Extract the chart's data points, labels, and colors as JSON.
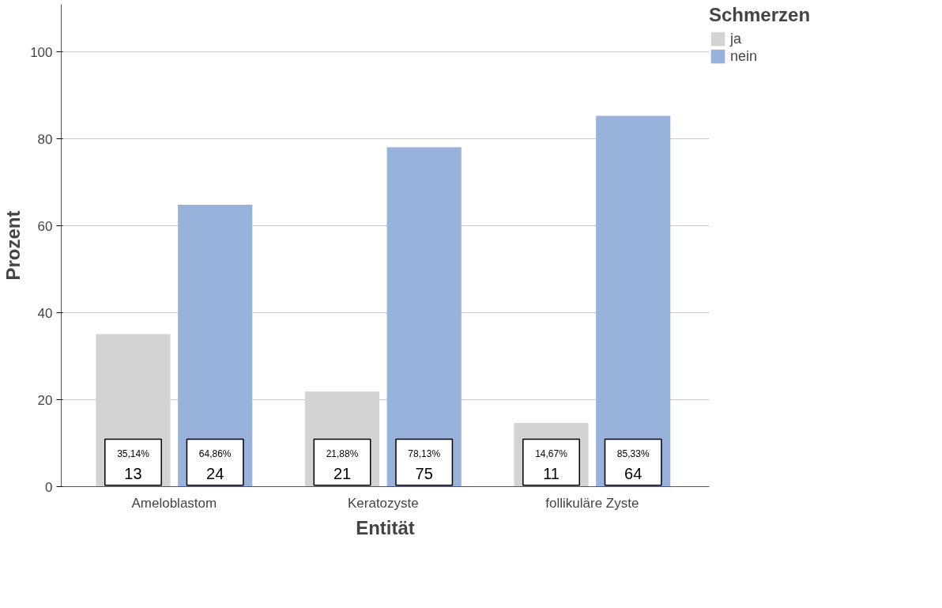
{
  "chart_data": {
    "type": "bar",
    "xlabel": "Entität",
    "ylabel": "Prozent",
    "legend_title": "Schmerzen",
    "categories": [
      "Ameloblastom",
      "Keratozyste",
      "follikuläre Zyste"
    ],
    "series": [
      {
        "name": "ja",
        "color": "#d3d3d3",
        "values": [
          35.14,
          21.88,
          14.67
        ],
        "value_labels": [
          "35,14%\n13",
          "21,88%\n21",
          "14,67%\n11"
        ]
      },
      {
        "name": "nein",
        "color": "#98b2dc",
        "values": [
          64.86,
          78.13,
          85.33
        ],
        "value_labels": [
          "64,86%\n24",
          "78,13%\n75",
          "85,33%\n64"
        ]
      }
    ],
    "ylim": [
      0,
      111
    ],
    "yticks": [
      0,
      20,
      40,
      60,
      80,
      100
    ],
    "grid": "y",
    "legend": "top right"
  }
}
